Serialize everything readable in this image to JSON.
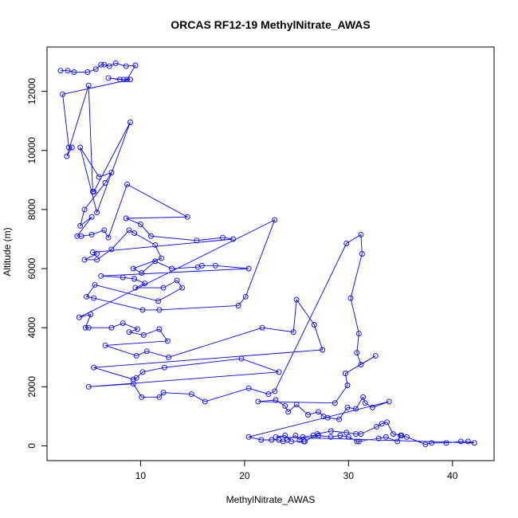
{
  "chart_data": {
    "type": "line",
    "title": "ORCAS RF12-19 MethylNitrate_AWAS",
    "xlabel": "MethylNitrate_AWAS",
    "ylabel": "Altitude (m)",
    "xlim": [
      1,
      44
    ],
    "ylim": [
      -500,
      13500
    ],
    "x_ticks": [
      10,
      20,
      30,
      40
    ],
    "y_ticks": [
      0,
      2000,
      4000,
      6000,
      8000,
      10000,
      12000
    ],
    "grid": false,
    "legend": "none",
    "marker": "open-circle",
    "color": "#0000ff",
    "series": [
      {
        "points": [
          [
            2.3,
            12700
          ],
          [
            3.0,
            12700
          ],
          [
            3.6,
            12650
          ],
          [
            4.9,
            12650
          ],
          [
            5.7,
            12750
          ],
          [
            6.2,
            12900
          ],
          [
            6.5,
            12900
          ],
          [
            7.0,
            12850
          ],
          [
            7.6,
            12950
          ],
          [
            8.6,
            12850
          ],
          [
            9.5,
            12880
          ],
          [
            8.7,
            12400
          ],
          [
            8.4,
            12400
          ],
          [
            6.9,
            12450
          ],
          [
            8.0,
            12400
          ],
          [
            9.0,
            12400
          ],
          [
            2.5,
            11900
          ],
          [
            3.1,
            10100
          ],
          [
            3.4,
            10100
          ],
          [
            2.9,
            9800
          ],
          [
            5.0,
            12200
          ],
          [
            5.4,
            8600
          ],
          [
            5.5,
            8600
          ],
          [
            9.0,
            10950
          ],
          [
            5.8,
            7900
          ],
          [
            4.2,
            10100
          ],
          [
            6.0,
            9100
          ],
          [
            7.2,
            9250
          ],
          [
            6.6,
            8900
          ],
          [
            4.6,
            8000
          ],
          [
            4.2,
            7450
          ],
          [
            5.3,
            7750
          ],
          [
            3.9,
            7100
          ],
          [
            4.3,
            7100
          ],
          [
            5.3,
            7150
          ],
          [
            6.5,
            7300
          ],
          [
            6.9,
            7050
          ],
          [
            8.7,
            8850
          ],
          [
            14.5,
            7750
          ],
          [
            8.6,
            7700
          ],
          [
            10.0,
            7500
          ],
          [
            11.0,
            7100
          ],
          [
            15.4,
            6950
          ],
          [
            17.9,
            7050
          ],
          [
            18.9,
            7000
          ],
          [
            5.4,
            6550
          ],
          [
            5.8,
            6500
          ],
          [
            4.6,
            6300
          ],
          [
            5.8,
            6300
          ],
          [
            7.2,
            6650
          ],
          [
            8.9,
            7300
          ],
          [
            9.4,
            7200
          ],
          [
            11.4,
            6800
          ],
          [
            12.0,
            6350
          ],
          [
            9.3,
            6000
          ],
          [
            10.1,
            5850
          ],
          [
            11.4,
            6250
          ],
          [
            13.0,
            6000
          ],
          [
            15.5,
            6050
          ],
          [
            15.9,
            6100
          ],
          [
            17.2,
            6100
          ],
          [
            20.4,
            6000
          ],
          [
            6.2,
            5750
          ],
          [
            8.3,
            5700
          ],
          [
            9.4,
            5650
          ],
          [
            10.4,
            5500
          ],
          [
            9.5,
            5350
          ],
          [
            12.2,
            5350
          ],
          [
            13.5,
            5600
          ],
          [
            14.0,
            5350
          ],
          [
            11.7,
            4900
          ],
          [
            5.6,
            5450
          ],
          [
            4.8,
            5050
          ],
          [
            5.5,
            5000
          ],
          [
            10.2,
            4600
          ],
          [
            11.8,
            4600
          ],
          [
            19.4,
            4750
          ],
          [
            20.1,
            5050
          ],
          [
            22.9,
            7650
          ],
          [
            4.1,
            4350
          ],
          [
            5.2,
            4450
          ],
          [
            4.7,
            4000
          ],
          [
            5.0,
            4000
          ],
          [
            7.2,
            4000
          ],
          [
            8.3,
            4150
          ],
          [
            9.7,
            3950
          ],
          [
            8.9,
            3850
          ],
          [
            10.3,
            3750
          ],
          [
            11.8,
            3950
          ],
          [
            12.6,
            3550
          ],
          [
            6.6,
            3400
          ],
          [
            9.6,
            3050
          ],
          [
            10.6,
            3200
          ],
          [
            12.7,
            3000
          ],
          [
            21.7,
            4000
          ],
          [
            24.7,
            3850
          ],
          [
            25.0,
            4950
          ],
          [
            26.7,
            4100
          ],
          [
            27.5,
            3250
          ],
          [
            5.5,
            2650
          ],
          [
            9.3,
            2250
          ],
          [
            9.6,
            2300
          ],
          [
            10.2,
            2500
          ],
          [
            12.3,
            2650
          ],
          [
            19.7,
            2950
          ],
          [
            23.3,
            2500
          ],
          [
            5.0,
            2000
          ],
          [
            9.3,
            2100
          ],
          [
            10.1,
            1650
          ],
          [
            11.8,
            1650
          ],
          [
            12.2,
            1800
          ],
          [
            14.9,
            1750
          ],
          [
            16.2,
            1500
          ],
          [
            20.4,
            1950
          ],
          [
            22.3,
            1750
          ],
          [
            22.9,
            1850
          ],
          [
            29.8,
            6850
          ],
          [
            31.2,
            7150
          ],
          [
            31.3,
            6500
          ],
          [
            30.2,
            5000
          ],
          [
            31.0,
            3800
          ],
          [
            30.8,
            3150
          ],
          [
            31.2,
            2750
          ],
          [
            32.6,
            3050
          ],
          [
            29.7,
            2450
          ],
          [
            29.9,
            2050
          ],
          [
            28.7,
            1450
          ],
          [
            21.3,
            1500
          ],
          [
            23.0,
            1550
          ],
          [
            23.9,
            1350
          ],
          [
            24.2,
            1150
          ],
          [
            25.0,
            1400
          ],
          [
            26.1,
            1050
          ],
          [
            27.1,
            1150
          ],
          [
            27.6,
            1000
          ],
          [
            28.0,
            950
          ],
          [
            29.1,
            900
          ],
          [
            29.9,
            1300
          ],
          [
            30.7,
            1250
          ],
          [
            31.4,
            1650
          ],
          [
            31.6,
            1450
          ],
          [
            32.3,
            1300
          ],
          [
            33.9,
            1500
          ],
          [
            20.4,
            300
          ],
          [
            21.6,
            200
          ],
          [
            22.6,
            200
          ],
          [
            23.3,
            200
          ],
          [
            23.7,
            150
          ],
          [
            24.1,
            200
          ],
          [
            24.9,
            350
          ],
          [
            25.3,
            200
          ],
          [
            25.6,
            300
          ],
          [
            26.6,
            350
          ],
          [
            27.1,
            350
          ],
          [
            28.3,
            300
          ],
          [
            29.2,
            350
          ],
          [
            30.0,
            300
          ],
          [
            30.8,
            150
          ],
          [
            31.0,
            150
          ],
          [
            32.9,
            250
          ],
          [
            33.6,
            300
          ],
          [
            34.7,
            150
          ],
          [
            35.0,
            350
          ],
          [
            35.6,
            300
          ],
          [
            37.4,
            50
          ],
          [
            38.0,
            100
          ],
          [
            39.4,
            100
          ],
          [
            40.8,
            150
          ],
          [
            41.5,
            150
          ],
          [
            42.1,
            100
          ],
          [
            23.0,
            300
          ],
          [
            23.9,
            350
          ],
          [
            24.5,
            150
          ],
          [
            25.7,
            150
          ],
          [
            25.8,
            150
          ],
          [
            27.0,
            400
          ],
          [
            28.3,
            500
          ],
          [
            29.8,
            450
          ],
          [
            30.7,
            400
          ],
          [
            31.2,
            400
          ],
          [
            32.7,
            650
          ],
          [
            33.2,
            750
          ],
          [
            33.7,
            800
          ],
          [
            34.3,
            400
          ],
          [
            35.1,
            350
          ]
        ]
      }
    ]
  }
}
